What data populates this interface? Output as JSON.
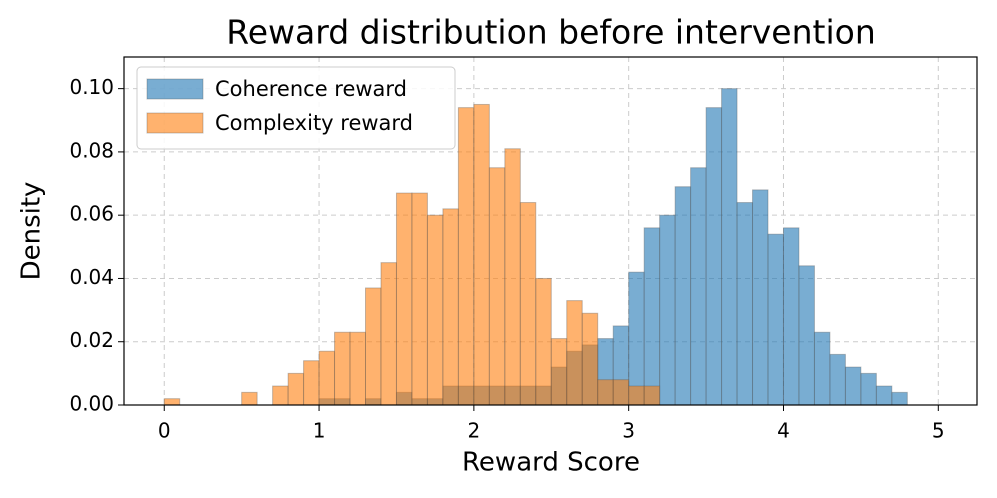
{
  "chart_data": {
    "type": "histogram",
    "title": "Reward distribution before intervention",
    "x_label": "Reward Score",
    "y_label": "Density",
    "bins": [
      0.0,
      0.1,
      0.2,
      0.3,
      0.4,
      0.5,
      0.6,
      0.7,
      0.8,
      0.9,
      1.0,
      1.1,
      1.2,
      1.3,
      1.4,
      1.5,
      1.6,
      1.7,
      1.8,
      1.9,
      2.0,
      2.1,
      2.2,
      2.3,
      2.4,
      2.5,
      2.6,
      2.7,
      2.8,
      2.9,
      3.0,
      3.1,
      3.2,
      3.3,
      3.4,
      3.5,
      3.6,
      3.7,
      3.8,
      3.9,
      4.0,
      4.1,
      4.2,
      4.3,
      4.4,
      4.5,
      4.6,
      4.7,
      4.8
    ],
    "series": [
      {
        "name": "Coherence reward",
        "color": "#1f77b4",
        "alpha": 0.6,
        "values": [
          0,
          0,
          0,
          0,
          0,
          0,
          0,
          0,
          0,
          0,
          0.002,
          0.002,
          0,
          0.002,
          0,
          0.004,
          0.002,
          0.002,
          0.006,
          0.006,
          0.006,
          0.006,
          0.006,
          0.006,
          0.006,
          0.012,
          0.017,
          0.019,
          0.021,
          0.025,
          0.042,
          0.056,
          0.06,
          0.069,
          0.075,
          0.094,
          0.1,
          0.064,
          0.068,
          0.054,
          0.056,
          0.044,
          0.023,
          0.016,
          0.012,
          0.01,
          0.006,
          0.004
        ]
      },
      {
        "name": "Complexity reward",
        "color": "#ff7f0e",
        "alpha": 0.6,
        "values": [
          0.002,
          0,
          0,
          0,
          0,
          0.004,
          0,
          0.006,
          0.01,
          0.014,
          0.017,
          0.023,
          0.023,
          0.037,
          0.045,
          0.067,
          0.067,
          0.06,
          0.062,
          0.094,
          0.095,
          0.075,
          0.081,
          0.064,
          0.04,
          0.021,
          0.033,
          0.029,
          0.008,
          0.008,
          0.006,
          0.006,
          0,
          0,
          0,
          0,
          0,
          0,
          0,
          0,
          0,
          0,
          0,
          0,
          0,
          0,
          0,
          0
        ]
      }
    ],
    "xlim": [
      -0.26,
      5.25
    ],
    "ylim": [
      0,
      0.11
    ],
    "xticks": [
      0,
      1,
      2,
      3,
      4,
      5
    ],
    "yticks": [
      {
        "value": 0,
        "label": "0.00"
      },
      {
        "value": 0.02,
        "label": "0.02"
      },
      {
        "value": 0.04,
        "label": "0.04"
      },
      {
        "value": 0.06,
        "label": "0.06"
      },
      {
        "value": 0.08,
        "label": "0.08"
      },
      {
        "value": 0.1,
        "label": "0.10"
      }
    ],
    "grid": true,
    "legend": "upper-left"
  }
}
